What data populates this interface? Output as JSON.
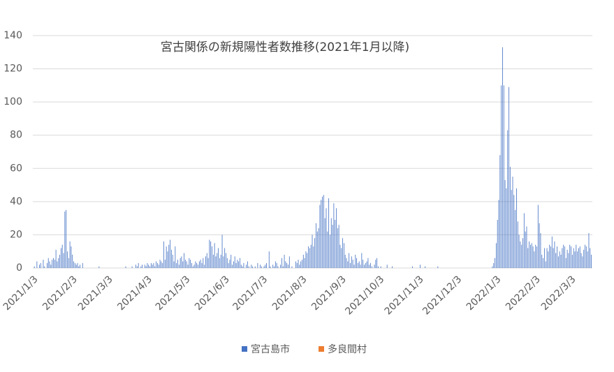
{
  "chart_data": {
    "type": "bar",
    "title": "宮古関係の新規陽性者数推移(2021年1月以降)",
    "categories": [
      "2021/1/3",
      null,
      null,
      null,
      null,
      null,
      null,
      null,
      null,
      null,
      null,
      null,
      null,
      null,
      null,
      null,
      null,
      null,
      null,
      null,
      null,
      null,
      null,
      null,
      null,
      null,
      null,
      null,
      null,
      null,
      null,
      "2021/2/3",
      null,
      null,
      null,
      null,
      null,
      null,
      null,
      null,
      null,
      null,
      null,
      null,
      null,
      null,
      null,
      null,
      null,
      null,
      null,
      null,
      null,
      null,
      null,
      null,
      null,
      null,
      null,
      "2021/3/3",
      null,
      null,
      null,
      null,
      null,
      null,
      null,
      null,
      null,
      null,
      null,
      null,
      null,
      null,
      null,
      null,
      null,
      null,
      null,
      null,
      null,
      null,
      null,
      null,
      null,
      null,
      null,
      null,
      null,
      null,
      "2021/4/3",
      null,
      null,
      null,
      null,
      null,
      null,
      null,
      null,
      null,
      null,
      null,
      null,
      null,
      null,
      null,
      null,
      null,
      null,
      null,
      null,
      null,
      null,
      null,
      null,
      null,
      null,
      null,
      null,
      null,
      "2021/5/3",
      null,
      null,
      null,
      null,
      null,
      null,
      null,
      null,
      null,
      null,
      null,
      null,
      null,
      null,
      null,
      null,
      null,
      null,
      null,
      null,
      null,
      null,
      null,
      null,
      null,
      null,
      null,
      null,
      null,
      null,
      "2021/6/3",
      null,
      null,
      null,
      null,
      null,
      null,
      null,
      null,
      null,
      null,
      null,
      null,
      null,
      null,
      null,
      null,
      null,
      null,
      null,
      null,
      null,
      null,
      null,
      null,
      null,
      null,
      null,
      null,
      null,
      "2021/7/3",
      null,
      null,
      null,
      null,
      null,
      null,
      null,
      null,
      null,
      null,
      null,
      null,
      null,
      null,
      null,
      null,
      null,
      null,
      null,
      null,
      null,
      null,
      null,
      null,
      null,
      null,
      null,
      null,
      null,
      null,
      "2021/8/3",
      null,
      null,
      null,
      null,
      null,
      null,
      null,
      null,
      null,
      null,
      null,
      null,
      null,
      null,
      null,
      null,
      null,
      null,
      null,
      null,
      null,
      null,
      null,
      null,
      null,
      null,
      null,
      null,
      null,
      null,
      "2021/9/3",
      null,
      null,
      null,
      null,
      null,
      null,
      null,
      null,
      null,
      null,
      null,
      null,
      null,
      null,
      null,
      null,
      null,
      null,
      null,
      null,
      null,
      null,
      null,
      null,
      null,
      null,
      null,
      null,
      null,
      "2021/10/3",
      null,
      null,
      null,
      null,
      null,
      null,
      null,
      null,
      null,
      null,
      null,
      null,
      null,
      null,
      null,
      null,
      null,
      null,
      null,
      null,
      null,
      null,
      null,
      null,
      null,
      null,
      null,
      null,
      null,
      null,
      "2021/11/3",
      null,
      null,
      null,
      null,
      null,
      null,
      null,
      null,
      null,
      null,
      null,
      null,
      null,
      null,
      null,
      null,
      null,
      null,
      null,
      null,
      null,
      null,
      null,
      null,
      null,
      null,
      null,
      null,
      null,
      "2021/12/3",
      null,
      null,
      null,
      null,
      null,
      null,
      null,
      null,
      null,
      null,
      null,
      null,
      null,
      null,
      null,
      null,
      null,
      null,
      null,
      null,
      null,
      null,
      null,
      null,
      null,
      null,
      null,
      null,
      null,
      null,
      "2022/1/3",
      null,
      null,
      null,
      null,
      null,
      null,
      null,
      null,
      null,
      null,
      null,
      null,
      null,
      null,
      null,
      null,
      null,
      null,
      null,
      null,
      null,
      null,
      null,
      null,
      null,
      null,
      null,
      null,
      null,
      null,
      "2022/2/3",
      null,
      null,
      null,
      null,
      null,
      null,
      null,
      null,
      null,
      null,
      null,
      null,
      null,
      null,
      null,
      null,
      null,
      null,
      null,
      null,
      null,
      null,
      null,
      null,
      null,
      null,
      null,
      "2022/3/3",
      null,
      null,
      null,
      null,
      null,
      null,
      null,
      null,
      null,
      null,
      null,
      null,
      null,
      null,
      null,
      null
    ],
    "series": [
      {
        "name": "宮古島市",
        "color": "#4472c4",
        "values": [
          0,
          1,
          0,
          4,
          0,
          2,
          3,
          0,
          5,
          1,
          0,
          3,
          6,
          4,
          2,
          5,
          6,
          5,
          11,
          4,
          6,
          8,
          12,
          14,
          9,
          34,
          35,
          10,
          6,
          16,
          13,
          8,
          4,
          3,
          2,
          3,
          1,
          2,
          0,
          3,
          0,
          0,
          0,
          0,
          0,
          0,
          0,
          0,
          0,
          0,
          0,
          0,
          1,
          0,
          0,
          0,
          0,
          0,
          0,
          0,
          0,
          0,
          0,
          0,
          0,
          0,
          0,
          0,
          0,
          0,
          0,
          0,
          0,
          1,
          0,
          0,
          0,
          0,
          1,
          0,
          0,
          2,
          1,
          3,
          0,
          1,
          2,
          0,
          2,
          1,
          3,
          2,
          1,
          3,
          2,
          3,
          1,
          4,
          3,
          2,
          5,
          4,
          3,
          16,
          5,
          13,
          10,
          14,
          17,
          11,
          8,
          4,
          13,
          3,
          5,
          2,
          6,
          7,
          4,
          9,
          5,
          4,
          2,
          6,
          5,
          3,
          1,
          2,
          4,
          3,
          2,
          4,
          5,
          3,
          6,
          2,
          7,
          9,
          6,
          17,
          16,
          13,
          8,
          15,
          7,
          9,
          12,
          6,
          8,
          20,
          7,
          12,
          9,
          6,
          3,
          5,
          8,
          2,
          4,
          7,
          3,
          5,
          4,
          6,
          2,
          1,
          3,
          0,
          2,
          4,
          1,
          0,
          2,
          1,
          0,
          1,
          0,
          3,
          0,
          2,
          1,
          0,
          1,
          2,
          3,
          0,
          10,
          1,
          0,
          2,
          1,
          4,
          3,
          1,
          0,
          2,
          6,
          1,
          8,
          4,
          3,
          2,
          7,
          0,
          1,
          0,
          0,
          4,
          3,
          5,
          2,
          4,
          5,
          8,
          6,
          10,
          9,
          13,
          12,
          14,
          20,
          13,
          18,
          27,
          22,
          24,
          38,
          41,
          43,
          44,
          30,
          36,
          22,
          42,
          20,
          30,
          26,
          39,
          29,
          36,
          24,
          26,
          14,
          12,
          18,
          15,
          8,
          6,
          4,
          9,
          3,
          7,
          5,
          2,
          8,
          6,
          3,
          4,
          2,
          9,
          5,
          2,
          3,
          4,
          6,
          2,
          3,
          1,
          0,
          2,
          5,
          6,
          1,
          0,
          1,
          0,
          0,
          0,
          0,
          2,
          0,
          0,
          0,
          1,
          0,
          0,
          0,
          0,
          0,
          0,
          0,
          0,
          0,
          0,
          0,
          0,
          0,
          0,
          0,
          1,
          0,
          0,
          0,
          0,
          0,
          2,
          0,
          0,
          0,
          1,
          0,
          0,
          0,
          0,
          0,
          0,
          0,
          0,
          0,
          1,
          0,
          0,
          0,
          0,
          0,
          0,
          0,
          0,
          0,
          0,
          0,
          0,
          0,
          0,
          0,
          0,
          0,
          0,
          0,
          0,
          0,
          0,
          0,
          0,
          0,
          0,
          0,
          0,
          0,
          0,
          0,
          0,
          0,
          0,
          0,
          0,
          0,
          0,
          0,
          0,
          0,
          0,
          1,
          3,
          6,
          15,
          29,
          41,
          68,
          110,
          133,
          110,
          53,
          48,
          83,
          109,
          61,
          47,
          55,
          44,
          35,
          48,
          28,
          20,
          16,
          14,
          18,
          33,
          22,
          25,
          12,
          16,
          14,
          15,
          13,
          10,
          14,
          13,
          38,
          27,
          21,
          8,
          6,
          12,
          4,
          12,
          10,
          14,
          13,
          19,
          12,
          16,
          9,
          13,
          7,
          10,
          8,
          12,
          14,
          13,
          6,
          11,
          9,
          14,
          13,
          8,
          12,
          10,
          14,
          10,
          12,
          13,
          9,
          7,
          11,
          14,
          13,
          10,
          21,
          12,
          8
        ]
      },
      {
        "name": "多良間村",
        "color": "#ed7d31",
        "values": [
          0,
          0,
          0,
          0,
          0,
          0,
          0,
          0,
          0,
          0,
          0,
          0,
          0,
          0,
          0,
          0,
          0,
          0,
          0,
          0,
          0,
          0,
          0,
          0,
          0,
          0,
          0,
          0,
          0,
          0,
          0,
          0,
          0,
          0,
          0,
          0,
          0,
          0,
          0,
          0,
          0,
          0,
          0,
          0,
          0,
          0,
          0,
          0,
          0,
          0,
          0,
          0,
          0,
          0,
          0,
          0,
          0,
          0,
          0,
          0,
          0,
          0,
          0,
          0,
          0,
          0,
          0,
          0,
          0,
          0,
          0,
          0,
          0,
          0,
          0,
          0,
          0,
          0,
          0,
          0,
          0,
          0,
          0,
          0,
          0,
          0,
          0,
          0,
          0,
          0,
          0,
          0,
          0,
          0,
          0,
          0,
          0,
          0,
          0,
          0,
          0,
          0,
          0,
          0,
          0,
          0,
          0,
          0,
          0,
          0,
          0,
          0,
          0,
          0,
          0,
          0,
          0,
          0,
          0,
          0,
          0,
          0,
          0,
          0,
          0,
          0,
          0,
          0,
          0,
          0,
          0,
          0,
          0,
          0,
          0,
          0,
          0,
          0,
          0,
          0,
          0,
          0,
          0,
          0,
          0,
          0,
          0,
          0,
          0,
          0,
          0,
          0,
          0,
          0,
          0,
          0,
          0,
          0,
          0,
          0,
          0,
          0,
          0,
          0,
          0,
          0,
          0,
          0,
          0,
          0,
          0,
          0,
          0,
          0,
          0,
          0,
          0,
          0,
          0,
          0,
          0,
          0,
          0,
          0,
          0,
          0,
          0,
          0,
          0,
          0,
          0,
          0,
          0,
          0,
          0,
          0,
          0,
          0,
          0,
          0,
          0,
          0,
          0,
          0,
          0,
          0,
          0,
          0,
          0,
          0,
          0,
          0,
          0,
          0,
          0,
          0,
          0,
          0,
          0,
          0,
          0,
          0,
          0,
          0,
          0,
          0,
          0,
          0,
          0,
          0,
          0,
          0,
          0,
          0,
          0,
          0,
          0,
          0,
          0,
          0,
          0,
          0,
          0,
          0,
          0,
          0,
          0,
          0,
          0,
          0,
          0,
          0,
          0,
          0,
          0,
          0,
          0,
          0,
          0,
          0,
          0,
          0,
          0,
          0,
          0,
          0,
          0,
          0,
          0,
          0,
          0,
          0,
          0,
          0,
          0,
          0,
          0,
          0,
          0,
          0,
          0,
          0,
          0,
          0,
          0,
          0,
          0,
          0,
          0,
          0,
          0,
          0,
          0,
          0,
          0,
          0,
          0,
          0,
          0,
          0,
          0,
          0,
          0,
          0,
          0,
          0,
          0,
          0,
          0,
          0,
          0,
          0,
          0,
          0,
          0,
          0,
          0,
          0,
          0,
          0,
          0,
          0,
          0,
          0,
          0,
          0,
          0,
          0,
          0,
          0,
          0,
          0,
          0,
          0,
          0,
          0,
          0,
          0,
          0,
          0,
          0,
          0,
          0,
          0,
          0,
          0,
          0,
          0,
          0,
          0,
          0,
          0,
          0,
          0,
          0,
          0,
          0,
          0,
          0,
          0,
          0,
          0,
          0,
          0,
          0,
          0,
          0,
          0,
          0,
          0,
          0,
          0,
          0,
          0,
          0,
          0,
          0,
          0,
          0,
          0,
          0,
          0,
          0,
          0,
          0,
          0,
          0,
          0,
          0,
          0,
          0,
          0,
          0,
          0,
          0,
          0,
          0,
          0,
          0,
          0,
          0,
          0,
          0,
          0,
          0,
          0,
          0,
          0,
          0,
          0,
          0,
          0,
          0,
          0,
          0,
          0,
          0,
          0,
          0,
          0,
          0,
          0,
          0,
          0,
          0,
          0,
          0,
          0,
          0,
          0,
          0,
          0,
          0,
          0,
          0,
          0,
          0,
          0,
          0,
          0,
          0
        ]
      }
    ],
    "ylim": [
      0,
      140
    ],
    "yticks": [
      0,
      20,
      40,
      60,
      80,
      100,
      120,
      140
    ],
    "grid": true
  }
}
